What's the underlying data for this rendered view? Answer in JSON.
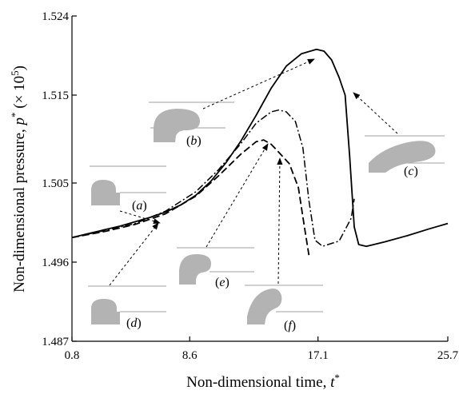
{
  "chart_data": {
    "type": "line",
    "xlabel": "Non-dimensional time, t*",
    "xlabel_text": "Non-dimensional time, ",
    "xlabel_var": "t",
    "xlabel_sup": "*",
    "ylabel_text": "Non-dimensional pressure, ",
    "ylabel_var": "p",
    "ylabel_sup": "*",
    "ylabel_unit_open": " (× 10",
    "ylabel_unit_exp": "5",
    "ylabel_unit_close": ")",
    "xlim": [
      0.8,
      25.7
    ],
    "ylim": [
      1.487,
      1.524
    ],
    "x_ticks": [
      0.8,
      8.6,
      17.1,
      25.7
    ],
    "x_tick_labels": [
      "0.8",
      "8.6",
      "17.1",
      "25.7"
    ],
    "y_ticks": [
      1.487,
      1.496,
      1.505,
      1.515,
      1.524
    ],
    "y_tick_labels": [
      "1.487",
      "1.496",
      "1.505",
      "1.515",
      "1.524"
    ],
    "grid": false,
    "series": [
      {
        "style": "solid",
        "points": [
          [
            0.8,
            1.4988
          ],
          [
            2,
            1.4993
          ],
          [
            3,
            1.4997
          ],
          [
            4,
            1.5001
          ],
          [
            5,
            1.5006
          ],
          [
            6,
            1.5011
          ],
          [
            7,
            1.5017
          ],
          [
            8,
            1.5025
          ],
          [
            9,
            1.5036
          ],
          [
            10,
            1.5052
          ],
          [
            11,
            1.5073
          ],
          [
            12,
            1.5098
          ],
          [
            13,
            1.5127
          ],
          [
            14,
            1.5158
          ],
          [
            15,
            1.5183
          ],
          [
            16,
            1.5197
          ],
          [
            17,
            1.5202
          ],
          [
            17.5,
            1.52
          ],
          [
            18,
            1.519
          ],
          [
            18.5,
            1.517
          ],
          [
            18.9,
            1.515
          ],
          [
            19.2,
            1.508
          ],
          [
            19.5,
            1.5
          ],
          [
            19.8,
            1.498
          ],
          [
            20.3,
            1.4978
          ],
          [
            21.5,
            1.4983
          ],
          [
            23,
            1.499
          ],
          [
            24.5,
            1.4998
          ],
          [
            25.7,
            1.5004
          ]
        ]
      },
      {
        "style": "dash-dot",
        "points": [
          [
            0.8,
            1.4988
          ],
          [
            3,
            1.4996
          ],
          [
            5,
            1.5004
          ],
          [
            7,
            1.5018
          ],
          [
            9,
            1.504
          ],
          [
            10.5,
            1.5065
          ],
          [
            12,
            1.5095
          ],
          [
            13,
            1.5118
          ],
          [
            14,
            1.5131
          ],
          [
            14.5,
            1.5133
          ],
          [
            15,
            1.5131
          ],
          [
            15.6,
            1.512
          ],
          [
            16.1,
            1.509
          ],
          [
            16.5,
            1.503
          ],
          [
            16.9,
            1.4985
          ],
          [
            17.4,
            1.4978
          ],
          [
            18.5,
            1.4984
          ],
          [
            19.3,
            1.501
          ],
          [
            19.5,
            1.5032
          ]
        ]
      },
      {
        "style": "dashed",
        "points": [
          [
            0.8,
            1.4988
          ],
          [
            3,
            1.4995
          ],
          [
            5,
            1.5003
          ],
          [
            7,
            1.5015
          ],
          [
            9,
            1.5035
          ],
          [
            10.5,
            1.5058
          ],
          [
            12,
            1.5083
          ],
          [
            13,
            1.5097
          ],
          [
            13.5,
            1.5099
          ],
          [
            14,
            1.5094
          ],
          [
            14.5,
            1.5085
          ],
          [
            15.2,
            1.5072
          ],
          [
            15.8,
            1.5045
          ],
          [
            16.2,
            1.5
          ],
          [
            16.5,
            1.4968
          ]
        ]
      }
    ],
    "annotations": [
      {
        "label": "(a)",
        "letter": "a"
      },
      {
        "label": "(b)",
        "letter": "b"
      },
      {
        "label": "(c)",
        "letter": "c"
      },
      {
        "label": "(d)",
        "letter": "d"
      },
      {
        "label": "(e)",
        "letter": "e"
      },
      {
        "label": "(f)",
        "letter": "f"
      }
    ]
  }
}
